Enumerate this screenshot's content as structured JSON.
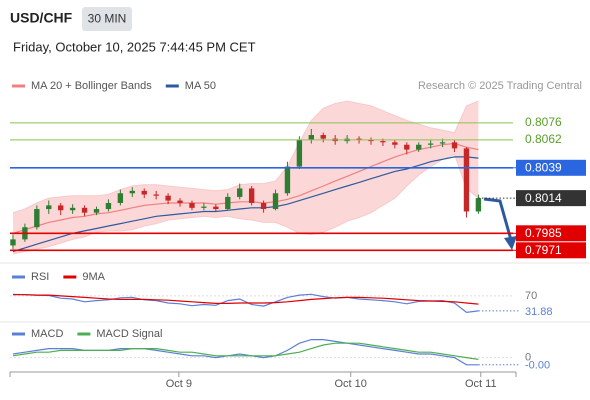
{
  "header": {
    "symbol": "USD/CHF",
    "interval": "30 MIN",
    "timestamp": "Friday, October 10, 2025 7:44:45 PM CET"
  },
  "chart_data": [
    {
      "type": "candlestick",
      "credit": "Research © 2025 Trading Central",
      "xlim": [
        -0.5,
        41.9
      ],
      "ylim": [
        0.7963,
        0.8099
      ],
      "up_color": "#2e7d32",
      "down_color": "#c62828",
      "candles": [
        [
          0.7975,
          0.7984,
          0.7972,
          0.798
        ],
        [
          0.798,
          0.7993,
          0.7978,
          0.799
        ],
        [
          0.799,
          0.8008,
          0.7988,
          0.8005
        ],
        [
          0.8005,
          0.8012,
          0.8001,
          0.8008
        ],
        [
          0.8008,
          0.801,
          0.8,
          0.8004
        ],
        [
          0.8004,
          0.8009,
          0.8001,
          0.8006
        ],
        [
          0.8006,
          0.8008,
          0.7999,
          0.8002
        ],
        [
          0.8002,
          0.8007,
          0.8,
          0.8005
        ],
        [
          0.8005,
          0.8013,
          0.8003,
          0.801
        ],
        [
          0.801,
          0.8021,
          0.8008,
          0.8018
        ],
        [
          0.8018,
          0.8023,
          0.8015,
          0.802
        ],
        [
          0.802,
          0.8022,
          0.8014,
          0.8017
        ],
        [
          0.8017,
          0.802,
          0.8013,
          0.8016
        ],
        [
          0.8016,
          0.8018,
          0.8009,
          0.8012
        ],
        [
          0.8012,
          0.8014,
          0.8007,
          0.801
        ],
        [
          0.801,
          0.8012,
          0.8004,
          0.8006
        ],
        [
          0.8006,
          0.801,
          0.8004,
          0.8007
        ],
        [
          0.8007,
          0.8009,
          0.8003,
          0.8005
        ],
        [
          0.8005,
          0.8018,
          0.8004,
          0.8015
        ],
        [
          0.8015,
          0.8026,
          0.8013,
          0.8022
        ],
        [
          0.8022,
          0.8024,
          0.8008,
          0.801
        ],
        [
          0.801,
          0.8012,
          0.8002,
          0.8005
        ],
        [
          0.8005,
          0.8021,
          0.8004,
          0.8018
        ],
        [
          0.8018,
          0.8044,
          0.8016,
          0.804
        ],
        [
          0.804,
          0.8065,
          0.8038,
          0.8062
        ],
        [
          0.8062,
          0.8071,
          0.8059,
          0.8066
        ],
        [
          0.8066,
          0.8068,
          0.806,
          0.8063
        ],
        [
          0.8063,
          0.8066,
          0.8058,
          0.8061
        ],
        [
          0.8061,
          0.8066,
          0.8059,
          0.8063
        ],
        [
          0.8063,
          0.8065,
          0.8059,
          0.8062
        ],
        [
          0.8062,
          0.8064,
          0.8058,
          0.8061
        ],
        [
          0.8061,
          0.8063,
          0.8057,
          0.806
        ],
        [
          0.806,
          0.8062,
          0.8055,
          0.8058
        ],
        [
          0.8058,
          0.806,
          0.805,
          0.8054
        ],
        [
          0.8054,
          0.806,
          0.8052,
          0.8058
        ],
        [
          0.8058,
          0.8062,
          0.8055,
          0.8059
        ],
        [
          0.8059,
          0.8063,
          0.8056,
          0.806
        ],
        [
          0.806,
          0.8062,
          0.8052,
          0.8055
        ],
        [
          0.8055,
          0.8056,
          0.7998,
          0.8003
        ],
        [
          0.8003,
          0.8017,
          0.8001,
          0.8014
        ]
      ],
      "series": [
        {
          "name": "MA 20 + Bollinger Bands",
          "color": "#f08080",
          "band_color": "#f9c9c9",
          "values": [
            0.7985,
            0.7988,
            0.7991,
            0.7994,
            0.7996,
            0.7998,
            0.7999,
            0.8001,
            0.8002,
            0.8004,
            0.8006,
            0.8008,
            0.8009,
            0.801,
            0.801,
            0.801,
            0.801,
            0.8009,
            0.801,
            0.8011,
            0.8011,
            0.801,
            0.8011,
            0.8013,
            0.8016,
            0.802,
            0.8024,
            0.8028,
            0.8032,
            0.8036,
            0.804,
            0.8044,
            0.8048,
            0.8051,
            0.8054,
            0.8056,
            0.8058,
            0.8059,
            0.8056,
            0.8054
          ],
          "upper": [
            0.8002,
            0.8005,
            0.801,
            0.8014,
            0.8015,
            0.8016,
            0.8016,
            0.8016,
            0.8017,
            0.8021,
            0.8024,
            0.8025,
            0.8025,
            0.8024,
            0.8023,
            0.8022,
            0.8021,
            0.802,
            0.8021,
            0.8025,
            0.8026,
            0.8026,
            0.8028,
            0.804,
            0.806,
            0.8078,
            0.8088,
            0.8092,
            0.8094,
            0.8092,
            0.809,
            0.8086,
            0.8082,
            0.8078,
            0.8075,
            0.8072,
            0.807,
            0.8068,
            0.809,
            0.8094
          ],
          "lower": [
            0.7968,
            0.797,
            0.7972,
            0.7974,
            0.7977,
            0.798,
            0.7982,
            0.7986,
            0.7987,
            0.7987,
            0.7988,
            0.7991,
            0.7993,
            0.7996,
            0.7997,
            0.7998,
            0.7999,
            0.7998,
            0.7999,
            0.7997,
            0.7996,
            0.7994,
            0.7994,
            0.799,
            0.7985,
            0.7984,
            0.7986,
            0.799,
            0.7995,
            0.7998,
            0.8002,
            0.8008,
            0.8014,
            0.8024,
            0.8033,
            0.804,
            0.8046,
            0.805,
            0.8022,
            0.8014
          ]
        },
        {
          "name": "MA 50",
          "color": "#2d5a9e",
          "values": [
            0.797,
            0.7973,
            0.7976,
            0.7979,
            0.7982,
            0.7985,
            0.7987,
            0.7989,
            0.7991,
            0.7993,
            0.7995,
            0.7997,
            0.7999,
            0.8,
            0.8001,
            0.8002,
            0.8003,
            0.8003,
            0.8004,
            0.8005,
            0.8006,
            0.8006,
            0.8007,
            0.8009,
            0.8012,
            0.8015,
            0.8018,
            0.8021,
            0.8024,
            0.8027,
            0.803,
            0.8033,
            0.8036,
            0.8038,
            0.8041,
            0.8044,
            0.8046,
            0.8048,
            0.8048,
            0.8047
          ]
        }
      ],
      "levels": [
        {
          "value": 0.8076,
          "color": "#8cc152",
          "boxed": false
        },
        {
          "value": 0.8062,
          "color": "#8cc152",
          "boxed": false
        },
        {
          "value": 0.8039,
          "color": "#2a66e0",
          "boxed": true
        },
        {
          "value": 0.7985,
          "color": "#e00000",
          "boxed": true
        },
        {
          "value": 0.7971,
          "color": "#e00000",
          "boxed": true
        }
      ],
      "current_color": "#333333"
    },
    {
      "type": "line",
      "xlim": [
        -0.5,
        41.9
      ],
      "ylim": [
        0,
        100
      ],
      "yticks": [
        70
      ],
      "series": [
        {
          "name": "RSI",
          "color": "#5b7fd6",
          "values": [
            74,
            73,
            72,
            71,
            64,
            62,
            55,
            58,
            60,
            65,
            66,
            60,
            58,
            52,
            50,
            45,
            48,
            46,
            58,
            62,
            48,
            44,
            55,
            66,
            72,
            74,
            68,
            64,
            66,
            62,
            60,
            58,
            55,
            50,
            56,
            57,
            58,
            52,
            28,
            31.88
          ]
        },
        {
          "name": "9MA",
          "color": "#e00000",
          "values": [
            73,
            73,
            72,
            72,
            70,
            68,
            66,
            64,
            62,
            61,
            61,
            61,
            60,
            59,
            57,
            55,
            53,
            51,
            51,
            52,
            52,
            52,
            53,
            55,
            58,
            61,
            63,
            65,
            66,
            66,
            65,
            64,
            62,
            60,
            58,
            57,
            56,
            55,
            52,
            49
          ]
        }
      ]
    },
    {
      "type": "line",
      "xlim": [
        -0.5,
        41.9
      ],
      "ylim": [
        -0.0008,
        0.0012
      ],
      "yticks": [
        0
      ],
      "xticks": [
        {
          "value": 13.9,
          "label": "Oct 9"
        },
        {
          "value": 28.3,
          "label": "Oct 10"
        },
        {
          "value": 39.2,
          "label": "Oct 11"
        }
      ],
      "series": [
        {
          "name": "MACD",
          "color": "#5b7fd6",
          "values": [
            0.0002,
            0.0003,
            0.0004,
            0.0005,
            0.0005,
            0.0005,
            0.0004,
            0.0004,
            0.0004,
            0.0005,
            0.0005,
            0.0005,
            0.0004,
            0.0003,
            0.0002,
            0.0001,
            0.0001,
            0,
            0.0001,
            0.0002,
            0.0001,
            0,
            0.0001,
            0.0004,
            0.0008,
            0.001,
            0.001,
            0.0009,
            0.0008,
            0.0007,
            0.0006,
            0.0005,
            0.0004,
            0.0003,
            0.0002,
            0.0002,
            0.0001,
            0,
            -0.0004,
            -0.0004
          ],
          "value_labels": [
            null,
            null,
            null,
            null,
            null,
            null,
            null,
            null,
            null,
            null,
            null,
            null,
            null,
            null,
            null,
            null,
            null,
            null,
            null,
            null,
            null,
            null,
            null,
            null,
            null,
            null,
            null,
            null,
            null,
            null,
            null,
            null,
            null,
            null,
            null,
            null,
            null,
            null,
            null,
            "-0.00"
          ]
        },
        {
          "name": "MACD Signal",
          "color": "#4caf50",
          "values": [
            0.0001,
            0.0002,
            0.0003,
            0.0003,
            0.0004,
            0.0004,
            0.0004,
            0.0004,
            0.0004,
            0.0004,
            0.0005,
            0.0005,
            0.0005,
            0.0004,
            0.0003,
            0.0003,
            0.0002,
            0.0001,
            0.0001,
            0.0001,
            0.0001,
            0.0001,
            0.0001,
            0.0002,
            0.0003,
            0.0005,
            0.0007,
            0.0008,
            0.0008,
            0.0008,
            0.0007,
            0.0006,
            0.0005,
            0.0004,
            0.0003,
            0.0003,
            0.0002,
            0.0001,
            0,
            -0.0001
          ]
        }
      ]
    }
  ]
}
